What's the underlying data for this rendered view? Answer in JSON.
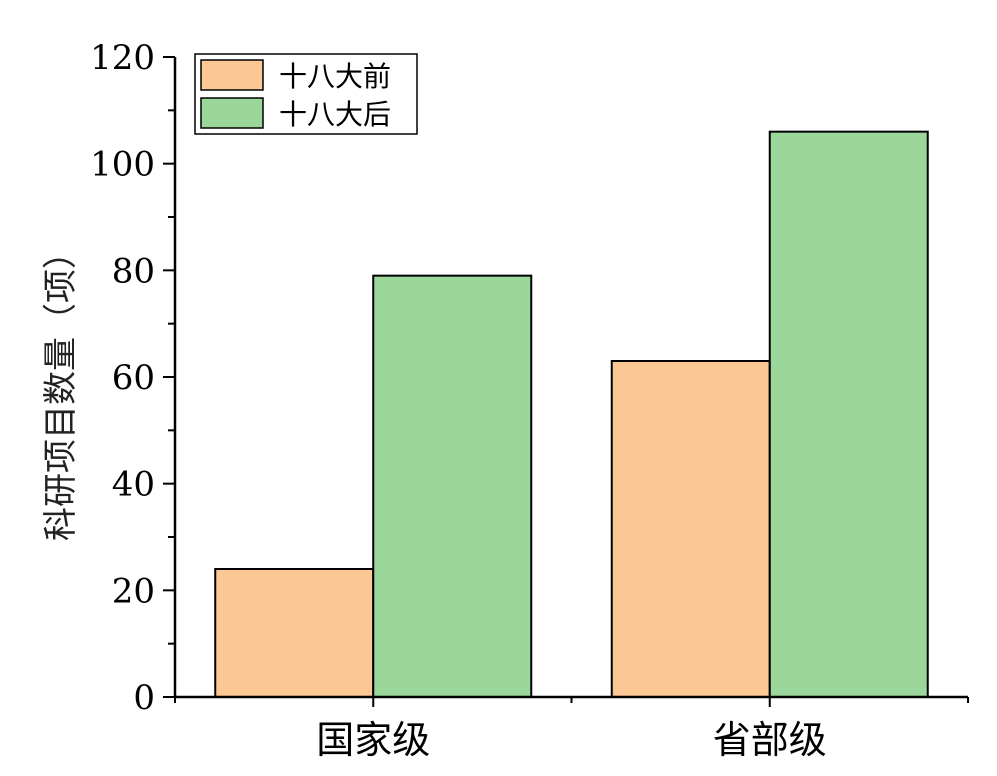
{
  "chart_data": {
    "type": "bar",
    "categories": [
      "国家级",
      "省部级"
    ],
    "series": [
      {
        "name": "十八大前",
        "values": [
          24,
          63
        ],
        "color": "#FAC795"
      },
      {
        "name": "十八大后",
        "values": [
          79,
          106
        ],
        "color": "#9BD69A"
      }
    ],
    "xlabel": "",
    "ylabel": "科研项目数量（项）",
    "ylim": [
      0,
      120
    ],
    "yticks": [
      0,
      20,
      40,
      60,
      80,
      100,
      120
    ],
    "grid": false,
    "legend_position": "top-left"
  }
}
